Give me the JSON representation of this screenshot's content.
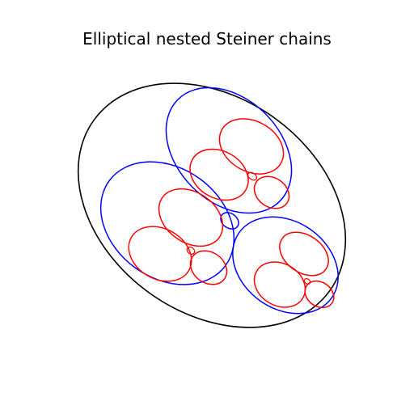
{
  "figure": {
    "title": "Elliptical nested Steiner chains"
  },
  "colors": {
    "outer_boundary": "#000000",
    "first_level": "#0000ff",
    "second_level": "#ff0000",
    "background": "#ffffff"
  }
}
